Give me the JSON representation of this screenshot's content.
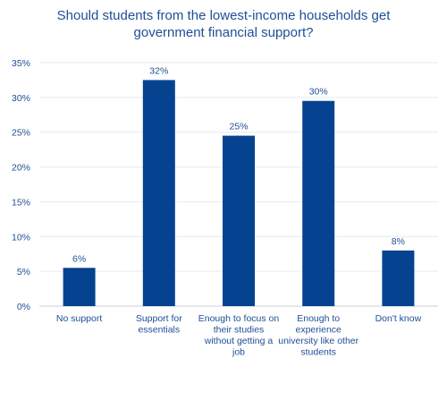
{
  "chart_data": {
    "type": "bar",
    "title": [
      "Should students from the lowest-income households get",
      "government  financial support?"
    ],
    "categories": [
      [
        "No support"
      ],
      [
        "Support for",
        "essentials"
      ],
      [
        "Enough to focus on",
        "their studies",
        "without getting a",
        "job"
      ],
      [
        "Enough to",
        "experience",
        "university like other",
        "students"
      ],
      [
        "Don't know"
      ]
    ],
    "values": [
      5.5,
      32.5,
      24.5,
      29.5,
      8
    ],
    "data_labels": [
      "6%",
      "32%",
      "25%",
      "30%",
      "8%"
    ],
    "ylim": [
      0,
      35
    ],
    "yticks": [
      0,
      5,
      10,
      15,
      20,
      25,
      30,
      35
    ],
    "ytick_labels": [
      "0%",
      "5%",
      "10%",
      "15%",
      "20%",
      "25%",
      "30%",
      "35%"
    ],
    "xlabel": "",
    "ylabel": "",
    "grid": true,
    "bar_color": "#054391",
    "text_color": "#1f4e96"
  }
}
